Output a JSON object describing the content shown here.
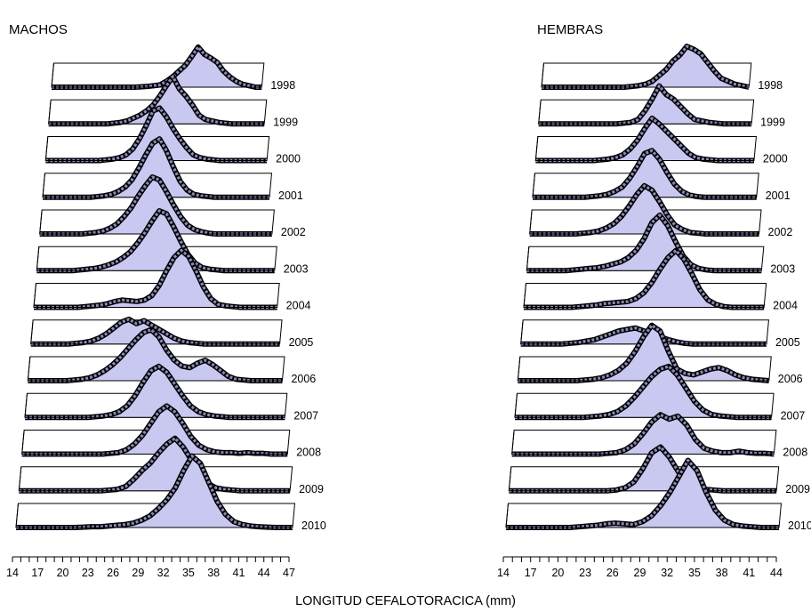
{
  "figure": {
    "xlabel": "LONGITUD CEFALOTORACICA (mm)"
  },
  "chart_data": [
    {
      "type": "area",
      "title": "MACHOS",
      "xlabel": "LONGITUD CEFALOTORACICA (mm)",
      "x_ticks": [
        14,
        17,
        20,
        23,
        26,
        29,
        32,
        35,
        38,
        41,
        44,
        47
      ],
      "x_range": [
        14,
        47
      ],
      "x": [
        14,
        15,
        16,
        17,
        18,
        19,
        20,
        21,
        22,
        23,
        24,
        25,
        26,
        27,
        28,
        29,
        30,
        31,
        32,
        33,
        34,
        35,
        36,
        37,
        38,
        39,
        40,
        41,
        42,
        43,
        44,
        45,
        46,
        47
      ],
      "series": [
        {
          "name": "1998",
          "values": [
            0,
            0,
            0,
            0,
            0,
            0,
            0,
            0,
            0,
            0,
            0,
            0,
            0,
            0,
            0.5,
            1,
            2,
            3,
            8,
            14,
            22,
            30,
            42,
            55,
            45,
            40,
            34,
            22,
            14,
            8,
            4,
            2,
            0,
            0
          ]
        },
        {
          "name": "1999",
          "values": [
            0,
            0,
            0,
            0,
            0,
            0,
            0,
            0,
            0,
            0,
            1,
            2,
            4,
            8,
            12,
            18,
            26,
            38,
            52,
            65,
            48,
            38,
            26,
            12,
            6,
            4,
            2,
            1,
            0,
            0,
            0,
            0,
            0,
            0
          ]
        },
        {
          "name": "2000",
          "values": [
            0,
            0,
            0,
            0,
            0,
            0,
            0,
            0,
            0,
            1,
            2,
            4,
            8,
            16,
            30,
            48,
            68,
            72,
            60,
            44,
            30,
            18,
            8,
            4,
            2,
            1,
            0,
            0,
            0,
            0,
            0,
            0,
            0,
            0
          ]
        },
        {
          "name": "2001",
          "values": [
            0,
            0,
            0,
            0,
            0,
            0,
            0,
            0,
            1,
            2,
            4,
            8,
            14,
            24,
            40,
            58,
            74,
            80,
            64,
            42,
            22,
            10,
            4,
            2,
            1,
            0,
            0,
            0,
            0,
            0,
            0,
            0,
            0,
            0
          ]
        },
        {
          "name": "2002",
          "values": [
            0,
            0,
            0,
            0,
            0,
            0,
            0,
            1,
            2,
            4,
            8,
            14,
            24,
            36,
            52,
            66,
            78,
            74,
            58,
            40,
            24,
            12,
            6,
            3,
            1,
            0,
            0,
            0,
            0,
            0,
            0,
            0,
            0,
            0
          ]
        },
        {
          "name": "2003",
          "values": [
            0,
            0,
            0,
            0,
            0,
            0,
            1,
            2,
            3,
            5,
            8,
            12,
            18,
            26,
            38,
            52,
            68,
            82,
            78,
            60,
            40,
            22,
            10,
            4,
            2,
            1,
            0,
            0,
            0,
            0,
            0,
            0,
            0,
            0
          ]
        },
        {
          "name": "2004",
          "values": [
            0,
            0,
            0,
            0,
            0,
            0,
            0,
            1,
            2,
            3,
            5,
            8,
            10,
            9,
            8,
            10,
            16,
            30,
            50,
            68,
            78,
            70,
            50,
            28,
            12,
            4,
            2,
            1,
            0,
            0,
            0,
            0,
            0,
            0
          ]
        },
        {
          "name": "2005",
          "values": [
            0,
            0,
            0,
            0,
            0,
            0,
            1,
            2,
            4,
            8,
            14,
            22,
            30,
            34,
            28,
            32,
            26,
            20,
            14,
            8,
            4,
            2,
            1,
            0,
            0,
            0,
            0,
            0,
            0,
            0,
            0,
            0,
            0,
            0
          ]
        },
        {
          "name": "2006",
          "values": [
            0,
            0,
            0,
            0,
            0,
            0,
            1,
            2,
            4,
            8,
            14,
            22,
            32,
            44,
            56,
            66,
            70,
            60,
            42,
            28,
            20,
            18,
            24,
            28,
            22,
            14,
            6,
            2,
            1,
            0,
            0,
            0,
            0,
            0
          ]
        },
        {
          "name": "2007",
          "values": [
            0,
            0,
            0,
            0,
            0,
            0,
            0,
            0,
            0,
            1,
            2,
            4,
            8,
            16,
            30,
            48,
            64,
            70,
            62,
            46,
            30,
            16,
            8,
            4,
            2,
            1,
            0,
            0,
            0,
            0,
            0,
            0,
            0,
            0
          ]
        },
        {
          "name": "2008",
          "values": [
            0,
            0,
            0,
            0,
            0,
            0,
            0,
            0,
            0,
            0,
            0,
            1,
            2,
            6,
            14,
            26,
            42,
            58,
            66,
            58,
            42,
            24,
            12,
            6,
            3,
            2,
            2,
            1,
            2,
            1,
            1,
            0,
            0,
            0
          ]
        },
        {
          "name": "2009",
          "values": [
            0,
            0,
            0,
            0,
            0,
            0,
            0,
            0,
            0,
            0,
            0,
            1,
            2,
            6,
            16,
            28,
            38,
            52,
            64,
            72,
            60,
            42,
            24,
            10,
            4,
            2,
            1,
            0,
            0,
            0,
            0,
            0,
            0,
            0
          ]
        },
        {
          "name": "2010",
          "values": [
            0,
            0,
            0,
            0,
            0,
            0,
            0,
            0,
            0.5,
            1,
            1,
            2,
            3,
            4,
            6,
            10,
            16,
            26,
            38,
            54,
            78,
            98,
            88,
            62,
            36,
            18,
            8,
            4,
            2,
            1,
            0.5,
            0,
            0,
            0
          ]
        }
      ]
    },
    {
      "type": "area",
      "title": "HEMBRAS",
      "xlabel": "LONGITUD CEFALOTORACICA (mm)",
      "x_ticks": [
        14,
        17,
        20,
        23,
        26,
        29,
        32,
        35,
        38,
        41,
        44
      ],
      "x_range": [
        14,
        44
      ],
      "x": [
        14,
        15,
        16,
        17,
        18,
        19,
        20,
        21,
        22,
        23,
        24,
        25,
        26,
        27,
        28,
        29,
        30,
        31,
        32,
        33,
        34,
        35,
        36,
        37,
        38,
        39,
        40,
        41,
        42,
        43,
        44
      ],
      "series": [
        {
          "name": "1998",
          "values": [
            0,
            0,
            0,
            0,
            0,
            0,
            0,
            0,
            0,
            0,
            0,
            0,
            0,
            1,
            2,
            4,
            8,
            16,
            24,
            36,
            44,
            56,
            52,
            46,
            34,
            22,
            12,
            8,
            4,
            2,
            0
          ]
        },
        {
          "name": "1999",
          "values": [
            0,
            0,
            0,
            0,
            0,
            0,
            0,
            0,
            0,
            0,
            0,
            0,
            1,
            2,
            6,
            18,
            34,
            52,
            40,
            34,
            24,
            14,
            6,
            4,
            2,
            1,
            0,
            0,
            0,
            0,
            0
          ]
        },
        {
          "name": "2000",
          "values": [
            0,
            0,
            0,
            0,
            0,
            0,
            0,
            0,
            0,
            1,
            2,
            4,
            8,
            16,
            28,
            44,
            58,
            50,
            40,
            30,
            20,
            10,
            4,
            2,
            1,
            0,
            0,
            0,
            0,
            0,
            0
          ]
        },
        {
          "name": "2001",
          "values": [
            0,
            0,
            0,
            0,
            0,
            0,
            0,
            0,
            1,
            2,
            4,
            8,
            14,
            26,
            42,
            60,
            64,
            52,
            34,
            18,
            8,
            3,
            1,
            0,
            0,
            0,
            0,
            0,
            0,
            0,
            0
          ]
        },
        {
          "name": "2002",
          "values": [
            0,
            0,
            0,
            0,
            0,
            0,
            0,
            1,
            2,
            4,
            8,
            14,
            24,
            38,
            54,
            66,
            60,
            44,
            26,
            12,
            6,
            2,
            1,
            0,
            0,
            0,
            0,
            0,
            0,
            0,
            0
          ]
        },
        {
          "name": "2003",
          "values": [
            0,
            0,
            0,
            0,
            0,
            0,
            1,
            2,
            3,
            4,
            6,
            9,
            12,
            18,
            28,
            44,
            66,
            76,
            62,
            40,
            20,
            8,
            3,
            1,
            0,
            0,
            0,
            0,
            0,
            0,
            0
          ]
        },
        {
          "name": "2004",
          "values": [
            0,
            0,
            0,
            0,
            0,
            0,
            0,
            1,
            2,
            3,
            5,
            6,
            7,
            8,
            12,
            20,
            34,
            52,
            68,
            78,
            66,
            46,
            24,
            10,
            4,
            1,
            0,
            0,
            0,
            0,
            0
          ]
        },
        {
          "name": "2005",
          "values": [
            0,
            0,
            0,
            0,
            0,
            0,
            1,
            2,
            4,
            6,
            10,
            14,
            18,
            20,
            22,
            18,
            14,
            10,
            6,
            3,
            1,
            0,
            0,
            0,
            0,
            0,
            0,
            0,
            0,
            0,
            0
          ]
        },
        {
          "name": "2006",
          "values": [
            0,
            0,
            0,
            0,
            0,
            0,
            0,
            0,
            1,
            2,
            4,
            8,
            14,
            24,
            40,
            60,
            76,
            68,
            40,
            16,
            10,
            8,
            12,
            16,
            18,
            14,
            8,
            4,
            2,
            1,
            0
          ]
        },
        {
          "name": "2007",
          "values": [
            0,
            0,
            0,
            0,
            0,
            0,
            0,
            0,
            0,
            1,
            2,
            4,
            8,
            16,
            28,
            42,
            56,
            66,
            70,
            58,
            40,
            22,
            10,
            4,
            2,
            1,
            0,
            0,
            0,
            0,
            0
          ]
        },
        {
          "name": "2008",
          "values": [
            0,
            0,
            0,
            0,
            0,
            0,
            0,
            0,
            0,
            0,
            0,
            1,
            2,
            6,
            14,
            28,
            44,
            54,
            48,
            52,
            40,
            20,
            8,
            4,
            2,
            2,
            4,
            2,
            1,
            1,
            0
          ]
        },
        {
          "name": "2009",
          "values": [
            0,
            0,
            0,
            0,
            0,
            0,
            0,
            0,
            0,
            0,
            0,
            0,
            1,
            4,
            12,
            30,
            52,
            60,
            46,
            26,
            12,
            4,
            2,
            1,
            0,
            0,
            0,
            0,
            0,
            0,
            0
          ]
        },
        {
          "name": "2010",
          "values": [
            0,
            0,
            0,
            0,
            0,
            0,
            0,
            0,
            1,
            2,
            3,
            5,
            6,
            5,
            4,
            8,
            16,
            30,
            48,
            70,
            92,
            78,
            48,
            24,
            10,
            4,
            2,
            1,
            0,
            0,
            0
          ]
        }
      ]
    }
  ]
}
